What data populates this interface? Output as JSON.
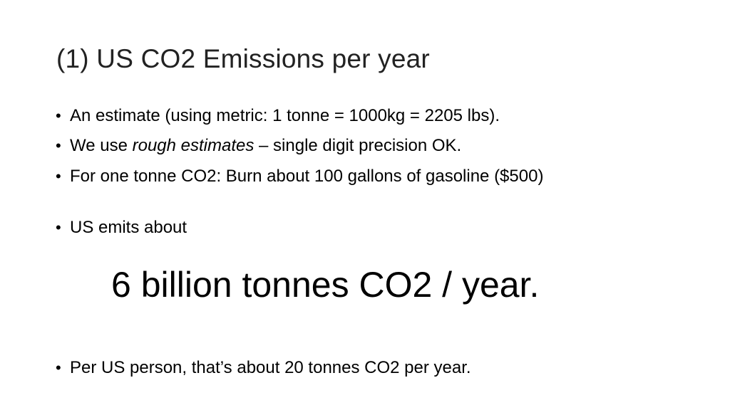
{
  "slide": {
    "title": "(1) US CO2 Emissions per year",
    "bullets": [
      {
        "text": "An estimate (using metric: 1 tonne = 1000kg = 2205 lbs)."
      },
      {
        "before": "We use ",
        "italic": "rough estimates",
        "after": " – single digit precision OK."
      },
      {
        "text": "For one tonne CO2: Burn about 100 gallons of gasoline ($500)"
      },
      {
        "text": "US emits about"
      }
    ],
    "highlight": "6 billion tonnes CO2 / year.",
    "final_bullet": "Per US person, that’s about 20 tonnes CO2 per year.",
    "bullet_glyph": "•"
  }
}
